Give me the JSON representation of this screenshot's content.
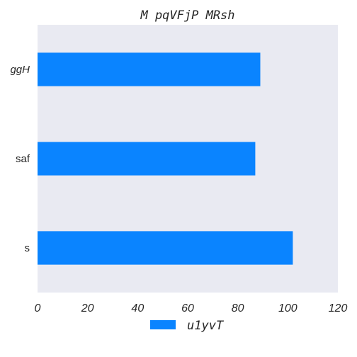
{
  "chart_data": {
    "type": "bar",
    "orientation": "horizontal",
    "title": "M pqVFjP MRsh",
    "categories": [
      "ggH",
      "saf",
      "s"
    ],
    "series": [
      {
        "name": "u1yvT",
        "values": [
          89,
          87,
          102
        ],
        "color": "#0a84ff"
      }
    ],
    "xlim": [
      0,
      120
    ],
    "xticks": [
      "0",
      "20",
      "40",
      "60",
      "80",
      "100",
      "120"
    ],
    "xlabel": "",
    "ylabel": "",
    "grid": false,
    "legend_position": "bottom",
    "background": "#e9eaf2"
  }
}
